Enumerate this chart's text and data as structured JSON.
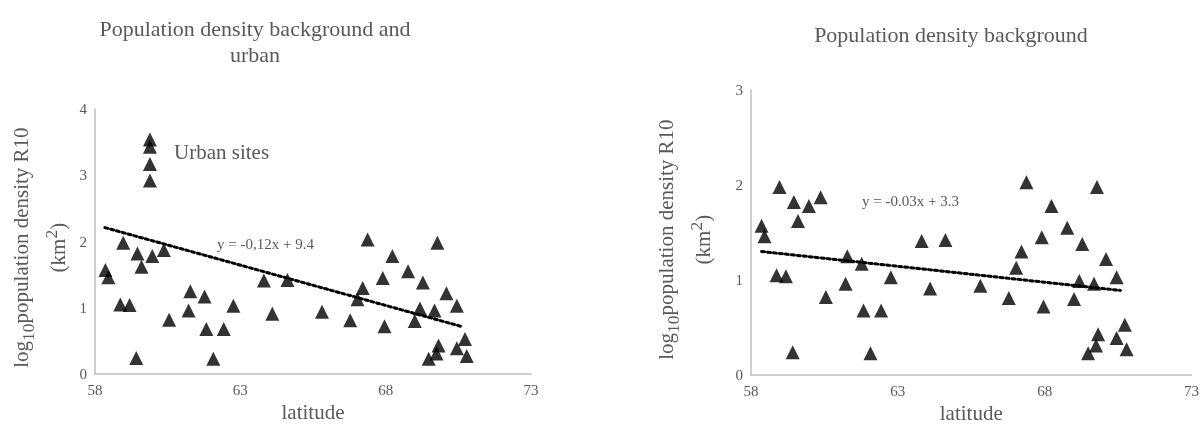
{
  "chart_data": [
    {
      "type": "scatter",
      "title": "Population density background and urban",
      "xlabel": "latitude",
      "ylabel": "log$_{10}$population density  R10 (km$^{2}$)",
      "xlim": [
        58,
        73
      ],
      "xticks": [
        58,
        63,
        68,
        73
      ],
      "ylim": [
        0,
        4
      ],
      "yticks": [
        0,
        1,
        2,
        3,
        4
      ],
      "marker": "triangle",
      "grid": false,
      "annotations": [
        "Urban sites",
        "y = -0,12x + 9.4"
      ],
      "series": [
        {
          "color": "#000000",
          "x": [
            58.36,
            58.46,
            58.97,
            58.87,
            59.19,
            59.46,
            59.6,
            59.42,
            59.97,
            60.37,
            60.55,
            61.28,
            61.22,
            61.77,
            61.83,
            62.07,
            62.43,
            62.76,
            63.81,
            64.1,
            64.62,
            65.81,
            66.78,
            67.03,
            67.21,
            67.38,
            67.9,
            67.96,
            68.23,
            68.77,
            69.0,
            69.18,
            69.28,
            69.48,
            69.68,
            69.75,
            69.82,
            69.78,
            70.09,
            70.45,
            70.45,
            70.73,
            70.79
          ],
          "values": [
            1.57,
            1.46,
            1.98,
            1.05,
            1.04,
            1.82,
            1.62,
            0.24,
            1.78,
            1.87,
            0.82,
            1.25,
            0.96,
            1.17,
            0.68,
            0.23,
            0.68,
            1.03,
            1.41,
            0.91,
            1.42,
            0.94,
            0.81,
            1.13,
            1.3,
            2.03,
            1.45,
            0.72,
            1.78,
            1.55,
            0.8,
            0.99,
            1.38,
            0.23,
            0.96,
            0.31,
            0.43,
            1.98,
            1.22,
            1.03,
            0.39,
            0.53,
            0.27
          ]
        },
        {
          "color": "#000000",
          "x": [
            59.89,
            59.89,
            59.89,
            59.89
          ],
          "values": [
            2.92,
            3.17,
            3.43,
            3.54
          ]
        },
        {
          "type": "line",
          "color": "#000000",
          "line_style": "dotted",
          "marker": "none",
          "x": [
            58.34,
            70.67
          ],
          "values": [
            2.21,
            0.71
          ]
        }
      ]
    },
    {
      "type": "scatter",
      "title": "Population density background",
      "xlabel": "latitude",
      "ylabel": "log$_{10}$population density  R10 (km$^{2}$)",
      "xlim": [
        58,
        73
      ],
      "xticks": [
        58,
        63,
        68,
        73
      ],
      "ylim": [
        0,
        3
      ],
      "yticks": [
        0,
        1,
        2,
        3
      ],
      "marker": "triangle",
      "grid": false,
      "annotations": [
        "y = -0.03x + 3.3"
      ],
      "series": [
        {
          "color": "#000000",
          "x": [
            58.36,
            58.46,
            58.97,
            58.87,
            59.19,
            59.46,
            59.6,
            59.42,
            59.97,
            60.37,
            60.55,
            61.28,
            61.22,
            61.77,
            61.83,
            62.07,
            62.43,
            62.76,
            63.81,
            64.1,
            64.62,
            65.81,
            66.78,
            67.03,
            67.21,
            67.38,
            67.9,
            67.96,
            68.23,
            68.77,
            69.0,
            69.18,
            69.28,
            69.48,
            69.68,
            69.75,
            69.82,
            69.78,
            70.09,
            70.45,
            70.45,
            70.73,
            70.79
          ],
          "values": [
            1.57,
            1.46,
            1.98,
            1.05,
            1.04,
            1.82,
            1.62,
            0.24,
            1.78,
            1.87,
            0.82,
            1.25,
            0.96,
            1.17,
            0.68,
            0.23,
            0.68,
            1.03,
            1.41,
            0.91,
            1.42,
            0.94,
            0.81,
            1.13,
            1.3,
            2.03,
            1.45,
            0.72,
            1.78,
            1.55,
            0.8,
            0.99,
            1.38,
            0.23,
            0.96,
            0.31,
            0.43,
            1.98,
            1.22,
            1.03,
            0.39,
            0.53,
            0.27
          ]
        },
        {
          "type": "line",
          "color": "#000000",
          "line_style": "dotted",
          "marker": "none",
          "x": [
            58.36,
            70.58
          ],
          "values": [
            1.3,
            0.89
          ]
        }
      ]
    }
  ]
}
